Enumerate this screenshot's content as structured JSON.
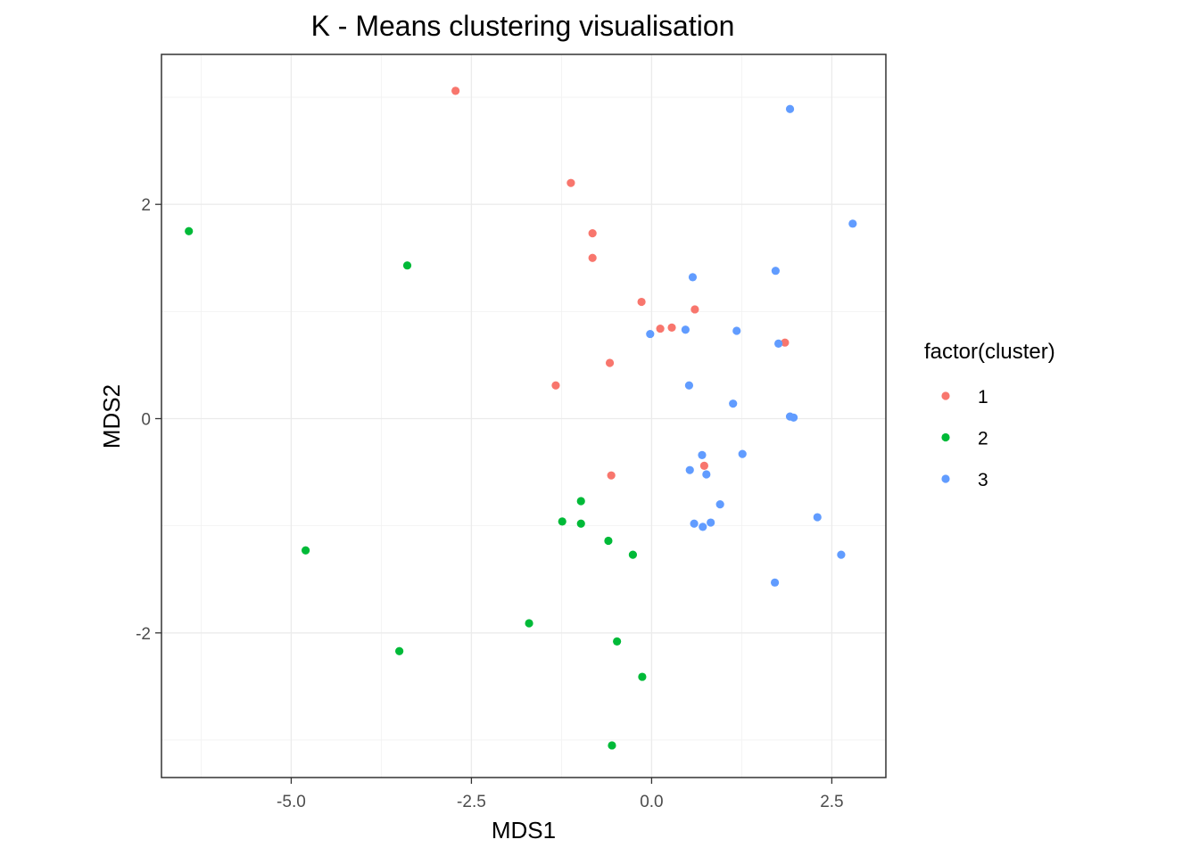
{
  "chart_data": {
    "type": "scatter",
    "title": "K - Means clustering visualisation",
    "xlabel": "MDS1",
    "ylabel": "MDS2",
    "xlim": [
      -6.8,
      3.25
    ],
    "ylim": [
      -3.35,
      3.4
    ],
    "xticks": [
      -5.0,
      -2.5,
      0.0,
      2.5
    ],
    "xtick_labels": [
      "-5.0",
      "-2.5",
      "0.0",
      "2.5"
    ],
    "yticks": [
      -2,
      0,
      2
    ],
    "ytick_labels": [
      "-2",
      "0",
      "2"
    ],
    "grid": true,
    "legend": {
      "title": "factor(cluster)",
      "position": "right"
    },
    "series": [
      {
        "name": "1",
        "color": "#F8766D",
        "points": [
          [
            -2.72,
            3.06
          ],
          [
            -1.12,
            2.2
          ],
          [
            -0.82,
            1.73
          ],
          [
            -0.82,
            1.5
          ],
          [
            -0.14,
            1.09
          ],
          [
            0.6,
            1.02
          ],
          [
            0.12,
            0.84
          ],
          [
            0.28,
            0.85
          ],
          [
            -0.58,
            0.52
          ],
          [
            -1.33,
            0.31
          ],
          [
            1.85,
            0.71
          ],
          [
            -0.56,
            -0.53
          ],
          [
            0.73,
            -0.44
          ]
        ]
      },
      {
        "name": "2",
        "color": "#00BA38",
        "points": [
          [
            -6.42,
            1.75
          ],
          [
            -3.39,
            1.43
          ],
          [
            -4.8,
            -1.23
          ],
          [
            -3.5,
            -2.17
          ],
          [
            -1.7,
            -1.91
          ],
          [
            -1.24,
            -0.96
          ],
          [
            -0.98,
            -0.77
          ],
          [
            -0.98,
            -0.98
          ],
          [
            -0.6,
            -1.14
          ],
          [
            -0.26,
            -1.27
          ],
          [
            -0.48,
            -2.08
          ],
          [
            -0.13,
            -2.41
          ],
          [
            -0.55,
            -3.05
          ]
        ]
      },
      {
        "name": "3",
        "color": "#619CFF",
        "points": [
          [
            1.92,
            2.89
          ],
          [
            2.79,
            1.82
          ],
          [
            1.72,
            1.38
          ],
          [
            0.57,
            1.32
          ],
          [
            1.18,
            0.82
          ],
          [
            0.47,
            0.83
          ],
          [
            -0.02,
            0.79
          ],
          [
            1.76,
            0.7
          ],
          [
            0.52,
            0.31
          ],
          [
            1.13,
            0.14
          ],
          [
            1.92,
            0.02
          ],
          [
            1.97,
            0.01
          ],
          [
            0.7,
            -0.34
          ],
          [
            1.26,
            -0.33
          ],
          [
            0.53,
            -0.48
          ],
          [
            0.76,
            -0.52
          ],
          [
            0.95,
            -0.8
          ],
          [
            0.59,
            -0.98
          ],
          [
            0.82,
            -0.97
          ],
          [
            0.71,
            -1.01
          ],
          [
            2.3,
            -0.92
          ],
          [
            2.63,
            -1.27
          ],
          [
            1.71,
            -1.53
          ]
        ]
      }
    ]
  }
}
